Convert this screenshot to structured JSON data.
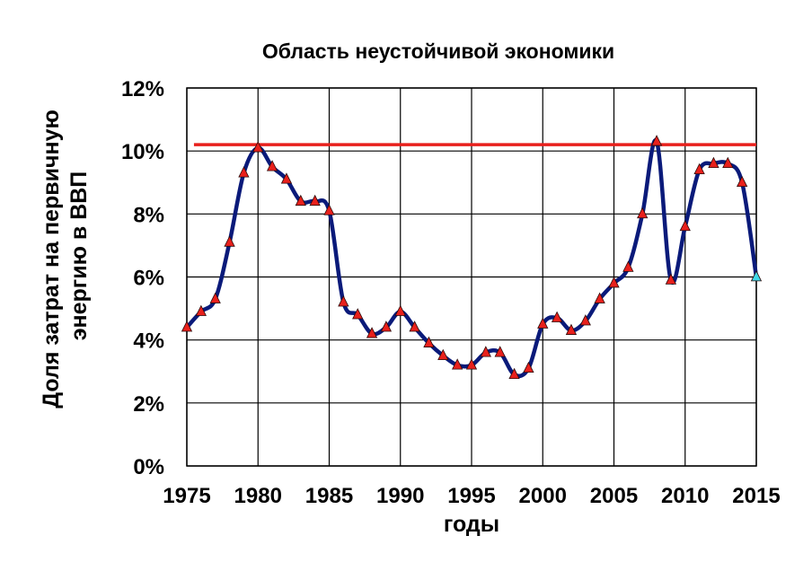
{
  "chart_data": {
    "type": "line",
    "title": "Область неустойчивой экономики",
    "xlabel": "годы",
    "ylabel_lines": [
      "Доля затрат на первичную",
      "энергию в ВВП"
    ],
    "xlim": [
      1975,
      2015
    ],
    "ylim": [
      0,
      0.12
    ],
    "x_ticks": [
      1975,
      1980,
      1985,
      1990,
      1995,
      2000,
      2005,
      2010,
      2015
    ],
    "x_tick_labels": [
      "1975",
      "1980",
      "1985",
      "1990",
      "1995",
      "2000",
      "2005",
      "2010",
      "2015"
    ],
    "y_ticks": [
      0,
      0.02,
      0.04,
      0.06,
      0.08,
      0.1,
      0.12
    ],
    "y_tick_labels": [
      "0%",
      "2%",
      "4%",
      "6%",
      "8%",
      "10%",
      "12%"
    ],
    "grid": true,
    "threshold": {
      "value": 0.102,
      "x_start": 1975.5,
      "x_end": 2015,
      "color": "#e8201c"
    },
    "series": [
      {
        "color": "#0a1a7a",
        "marker_color": "#e8201c",
        "last_marker_color": "#3fd8e8",
        "x": [
          1975,
          1976,
          1977,
          1978,
          1979,
          1980,
          1981,
          1982,
          1983,
          1984,
          1985,
          1986,
          1987,
          1988,
          1989,
          1990,
          1991,
          1992,
          1993,
          1994,
          1995,
          1996,
          1997,
          1998,
          1999,
          2000,
          2001,
          2002,
          2003,
          2004,
          2005,
          2006,
          2007,
          2008,
          2009,
          2010,
          2011,
          2012,
          2013,
          2014,
          2015
        ],
        "y": [
          0.044,
          0.049,
          0.053,
          0.071,
          0.093,
          0.101,
          0.095,
          0.091,
          0.084,
          0.084,
          0.081,
          0.052,
          0.048,
          0.042,
          0.044,
          0.049,
          0.044,
          0.039,
          0.035,
          0.032,
          0.032,
          0.036,
          0.036,
          0.029,
          0.031,
          0.045,
          0.047,
          0.043,
          0.046,
          0.053,
          0.058,
          0.063,
          0.08,
          0.103,
          0.059,
          0.076,
          0.094,
          0.096,
          0.096,
          0.09,
          0.06
        ]
      }
    ]
  }
}
